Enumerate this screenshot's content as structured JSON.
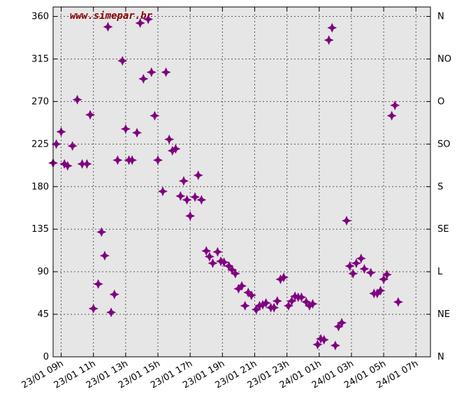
{
  "chart_data": {
    "type": "scatter",
    "watermark": "www.simepar.br",
    "ylim": [
      0,
      370
    ],
    "xlim": [
      0,
      23.4
    ],
    "grid": true,
    "marker_color": "#800080",
    "background_color": "#e6e6e6",
    "y_ticks": [
      0,
      45,
      90,
      135,
      180,
      225,
      270,
      315,
      360
    ],
    "y_tick_labels": [
      "0",
      "45",
      "90",
      "135",
      "180",
      "225",
      "270",
      "315",
      "360"
    ],
    "right_labels": [
      "N",
      "NE",
      "L",
      "SE",
      "S",
      "SO",
      "O",
      "NO",
      "N"
    ],
    "x_ticks": [
      0.5,
      2.5,
      4.5,
      6.5,
      8.5,
      10.5,
      12.5,
      14.5,
      16.5,
      18.5,
      20.5,
      22.5
    ],
    "x_tick_labels": [
      "23/01 09h",
      "23/01 11h",
      "23/01 13h",
      "23/01 15h",
      "23/01 17h",
      "23/01 19h",
      "23/01 21h",
      "23/01 23h",
      "24/01 01h",
      "24/01 03h",
      "24/01 05h",
      "24/01 07h"
    ],
    "points": [
      [
        0.0,
        205
      ],
      [
        0.2,
        225
      ],
      [
        0.5,
        238
      ],
      [
        0.7,
        204
      ],
      [
        0.9,
        202
      ],
      [
        1.2,
        223
      ],
      [
        1.5,
        272
      ],
      [
        1.8,
        204
      ],
      [
        2.1,
        204
      ],
      [
        2.3,
        256
      ],
      [
        2.5,
        51
      ],
      [
        2.8,
        77
      ],
      [
        3.0,
        132
      ],
      [
        3.2,
        107
      ],
      [
        3.4,
        349
      ],
      [
        3.6,
        47
      ],
      [
        3.8,
        66
      ],
      [
        4.0,
        208
      ],
      [
        4.3,
        313
      ],
      [
        4.5,
        241
      ],
      [
        4.7,
        208
      ],
      [
        4.9,
        208
      ],
      [
        5.2,
        237
      ],
      [
        5.4,
        353
      ],
      [
        5.6,
        294
      ],
      [
        5.9,
        357
      ],
      [
        6.1,
        301
      ],
      [
        6.3,
        255
      ],
      [
        6.5,
        208
      ],
      [
        6.8,
        175
      ],
      [
        7.0,
        301
      ],
      [
        7.2,
        230
      ],
      [
        7.4,
        218
      ],
      [
        7.6,
        220
      ],
      [
        7.9,
        170
      ],
      [
        8.1,
        186
      ],
      [
        8.3,
        166
      ],
      [
        8.5,
        149
      ],
      [
        8.8,
        169
      ],
      [
        9.0,
        192
      ],
      [
        9.2,
        166
      ],
      [
        9.5,
        112
      ],
      [
        9.7,
        106
      ],
      [
        9.9,
        99
      ],
      [
        10.2,
        111
      ],
      [
        10.4,
        101
      ],
      [
        10.6,
        100
      ],
      [
        10.9,
        96
      ],
      [
        11.1,
        92
      ],
      [
        11.3,
        88
      ],
      [
        11.5,
        72
      ],
      [
        11.7,
        75
      ],
      [
        11.9,
        54
      ],
      [
        12.1,
        68
      ],
      [
        12.3,
        65
      ],
      [
        12.6,
        50
      ],
      [
        12.8,
        54
      ],
      [
        13.0,
        55
      ],
      [
        13.2,
        57
      ],
      [
        13.5,
        52
      ],
      [
        13.7,
        52
      ],
      [
        13.9,
        59
      ],
      [
        14.1,
        82
      ],
      [
        14.3,
        84
      ],
      [
        14.6,
        54
      ],
      [
        14.8,
        59
      ],
      [
        15.0,
        64
      ],
      [
        15.2,
        63
      ],
      [
        15.4,
        63
      ],
      [
        15.7,
        58
      ],
      [
        15.9,
        54
      ],
      [
        16.1,
        56
      ],
      [
        16.4,
        13
      ],
      [
        16.6,
        19
      ],
      [
        16.8,
        18
      ],
      [
        17.1,
        335
      ],
      [
        17.3,
        348
      ],
      [
        17.5,
        12
      ],
      [
        17.7,
        32
      ],
      [
        17.9,
        36
      ],
      [
        18.2,
        144
      ],
      [
        18.4,
        96
      ],
      [
        18.6,
        88
      ],
      [
        18.8,
        99
      ],
      [
        19.1,
        104
      ],
      [
        19.3,
        93
      ],
      [
        19.7,
        89
      ],
      [
        19.9,
        67
      ],
      [
        20.1,
        67
      ],
      [
        20.3,
        70
      ],
      [
        20.5,
        82
      ],
      [
        20.7,
        87
      ],
      [
        21.0,
        255
      ],
      [
        21.2,
        266
      ],
      [
        21.4,
        58
      ]
    ]
  }
}
